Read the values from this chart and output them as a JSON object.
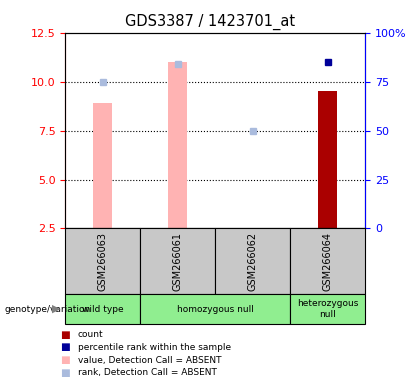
{
  "title": "GDS3387 / 1423701_at",
  "samples": [
    "GSM266063",
    "GSM266061",
    "GSM266062",
    "GSM266064"
  ],
  "pink_bar_values": [
    8.9,
    11.0,
    2.55,
    null
  ],
  "light_blue_marker_pct": [
    75,
    84,
    50,
    null
  ],
  "dark_red_bar_value": [
    null,
    null,
    null,
    9.5
  ],
  "dark_blue_marker_pct": [
    null,
    null,
    null,
    85
  ],
  "pink_bar_color": "#FFB3B3",
  "light_blue_color": "#AABBDD",
  "dark_red_color": "#AA0000",
  "dark_blue_color": "#000099",
  "left_ylim": [
    2.5,
    12.5
  ],
  "left_yticks": [
    2.5,
    5.0,
    7.5,
    10.0,
    12.5
  ],
  "right_yticks_pct": [
    0,
    25,
    50,
    75,
    100
  ],
  "right_ytick_labels": [
    "0",
    "25",
    "50",
    "75",
    "100%"
  ],
  "genotype_labels": [
    "wild type",
    "homozygous null",
    "heterozygous\nnull"
  ],
  "genotype_groups": [
    [
      0
    ],
    [
      1,
      2
    ],
    [
      3
    ]
  ],
  "genotype_color": "#90EE90",
  "sample_box_color": "#C8C8C8",
  "legend_items": [
    {
      "color": "#AA0000",
      "label": "count"
    },
    {
      "color": "#000099",
      "label": "percentile rank within the sample"
    },
    {
      "color": "#FFB3B3",
      "label": "value, Detection Call = ABSENT"
    },
    {
      "color": "#AABBDD",
      "label": "rank, Detection Call = ABSENT"
    }
  ],
  "bar_width": 0.25,
  "x_positions": [
    0,
    1,
    2,
    3
  ]
}
